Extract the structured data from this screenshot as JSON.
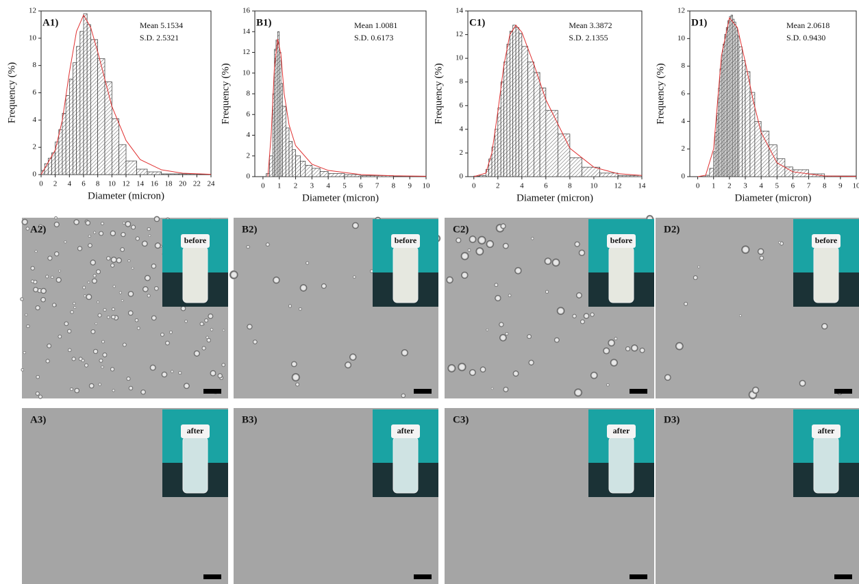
{
  "chart_data": [
    {
      "type": "histogram",
      "label": "A1)",
      "mean": "Mean 5.1534",
      "sd": "S.D.  2.5321",
      "xlabel": "Diameter (micron)",
      "ylabel": "Frequency (%)",
      "color": "#333333",
      "bins": [
        0,
        0.5,
        1,
        1.5,
        2,
        2.5,
        3,
        3.5,
        4,
        4.5,
        5,
        5.5,
        6,
        6.5,
        7,
        8,
        9,
        10,
        11,
        12,
        13.5,
        15,
        17,
        19.5,
        22
      ],
      "values": [
        0.3,
        0.8,
        1.2,
        1.6,
        2.4,
        3.3,
        4.5,
        5.8,
        7.0,
        8.2,
        9.4,
        10.5,
        11.8,
        11.0,
        9.9,
        8.5,
        6.8,
        4.1,
        2.2,
        1.0,
        0.4,
        0.2,
        0.05,
        0.05
      ],
      "fit": {
        "color": "#e03030",
        "x": [
          0,
          2,
          3,
          4,
          5,
          6,
          7,
          8,
          10,
          12,
          14,
          17,
          20,
          24
        ],
        "y": [
          0,
          1.8,
          4,
          7.5,
          10.5,
          11.7,
          10.8,
          9,
          5,
          2.5,
          1.1,
          0.35,
          0.1,
          0.02
        ]
      },
      "xlim": [
        0,
        24
      ],
      "ylim": [
        0,
        12
      ],
      "xticks": [
        0,
        2,
        4,
        6,
        8,
        10,
        12,
        14,
        16,
        18,
        20,
        22,
        24
      ],
      "yticks": [
        0,
        2,
        4,
        6,
        8,
        10,
        12
      ]
    },
    {
      "type": "histogram",
      "label": "B1)",
      "mean": "Mean 1.0081",
      "sd": "S.D.  0.6173",
      "xlabel": "Diameter (micron)",
      "ylabel": "Frequency (%)",
      "color": "#333333",
      "bins": [
        0.2,
        0.4,
        0.6,
        0.7,
        0.8,
        0.9,
        1.0,
        1.1,
        1.2,
        1.4,
        1.6,
        1.8,
        2.0,
        2.3,
        2.6,
        3.0,
        3.5,
        4.0,
        5,
        6,
        8,
        10
      ],
      "values": [
        0.3,
        2,
        8,
        12.3,
        13.2,
        14,
        12,
        9,
        6.8,
        4.7,
        3.4,
        2.6,
        2.0,
        1.5,
        1.1,
        0.8,
        0.5,
        0.3,
        0.2,
        0.1,
        0.05
      ],
      "fit": {
        "color": "#e03030",
        "x": [
          0.3,
          0.5,
          0.7,
          0.9,
          1.1,
          1.3,
          1.6,
          2,
          3,
          4,
          6,
          8,
          10
        ],
        "y": [
          0,
          4,
          10.5,
          13.3,
          11.8,
          8,
          5,
          3,
          1.2,
          0.6,
          0.2,
          0.08,
          0.03
        ]
      },
      "xlim": [
        -0.5,
        10
      ],
      "ylim": [
        0,
        16
      ],
      "xticks": [
        0,
        1,
        2,
        3,
        4,
        5,
        6,
        7,
        8,
        9,
        10
      ],
      "yticks": [
        0,
        2,
        4,
        6,
        8,
        10,
        12,
        14,
        16
      ]
    },
    {
      "type": "histogram",
      "label": "C1)",
      "mean": "Mean 3.3872",
      "sd": "S.D.  2.1355",
      "xlabel": "Diameter (micron)",
      "ylabel": "Frequency (%)",
      "color": "#333333",
      "bins": [
        0,
        0.5,
        1,
        1.25,
        1.5,
        1.75,
        2,
        2.25,
        2.5,
        2.75,
        3,
        3.25,
        3.5,
        3.75,
        4,
        4.5,
        5,
        5.5,
        6,
        7,
        8,
        9,
        10.5,
        12,
        14
      ],
      "values": [
        0.05,
        0.1,
        0.6,
        1.5,
        2.5,
        4,
        5.8,
        8,
        9.7,
        11.2,
        12.3,
        12.8,
        12.6,
        12.1,
        11,
        9.7,
        8.8,
        7.5,
        5.6,
        3.6,
        1.6,
        0.8,
        0.3,
        0.1
      ],
      "fit": {
        "color": "#e03030",
        "x": [
          0,
          1,
          1.5,
          2,
          2.5,
          3,
          3.5,
          4,
          5,
          6,
          8,
          10,
          12,
          14
        ],
        "y": [
          0,
          0.3,
          2,
          5.5,
          9.4,
          12,
          12.8,
          12.2,
          9.5,
          6.5,
          2.4,
          0.8,
          0.25,
          0.1
        ]
      },
      "xlim": [
        -0.5,
        14
      ],
      "ylim": [
        0,
        14
      ],
      "xticks": [
        0,
        2,
        4,
        6,
        8,
        10,
        12,
        14
      ],
      "yticks": [
        0,
        2,
        4,
        6,
        8,
        10,
        12,
        14
      ]
    },
    {
      "type": "histogram",
      "label": "D1)",
      "mean": "Mean 2.0618",
      "sd": "S.D.  0.9430",
      "xlabel": "Diameter (micron)",
      "ylabel": "Frequency (%)",
      "color": "#333333",
      "bins": [
        0.5,
        0.75,
        1,
        1.1,
        1.2,
        1.3,
        1.4,
        1.5,
        1.6,
        1.7,
        1.8,
        1.9,
        2,
        2.1,
        2.2,
        2.3,
        2.4,
        2.5,
        2.6,
        2.8,
        3,
        3.3,
        3.6,
        4,
        4.5,
        5,
        5.5,
        6,
        7,
        8,
        10
      ],
      "values": [
        0.1,
        0.6,
        1.8,
        3.2,
        4.6,
        6.4,
        7.8,
        8.8,
        9.6,
        10.3,
        10.8,
        11.3,
        11.6,
        11.7,
        11.4,
        11.2,
        10.8,
        10.2,
        9.4,
        8.4,
        7.6,
        6.1,
        4.0,
        3.3,
        2.3,
        1.3,
        0.7,
        0.5,
        0.2,
        0.05
      ],
      "fit": {
        "color": "#e03030",
        "x": [
          0,
          0.5,
          1,
          1.5,
          2,
          2.5,
          3,
          3.5,
          4,
          5,
          6,
          8,
          10
        ],
        "y": [
          0,
          0.1,
          2,
          8.8,
          11.5,
          10.8,
          8.3,
          5.5,
          3.2,
          1,
          0.35,
          0.05,
          0.01
        ]
      },
      "xlim": [
        -0.5,
        10
      ],
      "ylim": [
        0,
        12
      ],
      "xticks": [
        0,
        1,
        2,
        3,
        4,
        5,
        6,
        7,
        8,
        9,
        10
      ],
      "yticks": [
        0,
        2,
        4,
        6,
        8,
        10,
        12
      ]
    }
  ],
  "panels": [
    {
      "label": "A2)",
      "inset": "before"
    },
    {
      "label": "B2)",
      "inset": "before"
    },
    {
      "label": "C2)",
      "inset": "before"
    },
    {
      "label": "D2)",
      "inset": "before"
    },
    {
      "label": "A3)",
      "inset": "after"
    },
    {
      "label": "B3)",
      "inset": "after"
    },
    {
      "label": "C3)",
      "inset": "after"
    },
    {
      "label": "D3)",
      "inset": "after"
    }
  ]
}
